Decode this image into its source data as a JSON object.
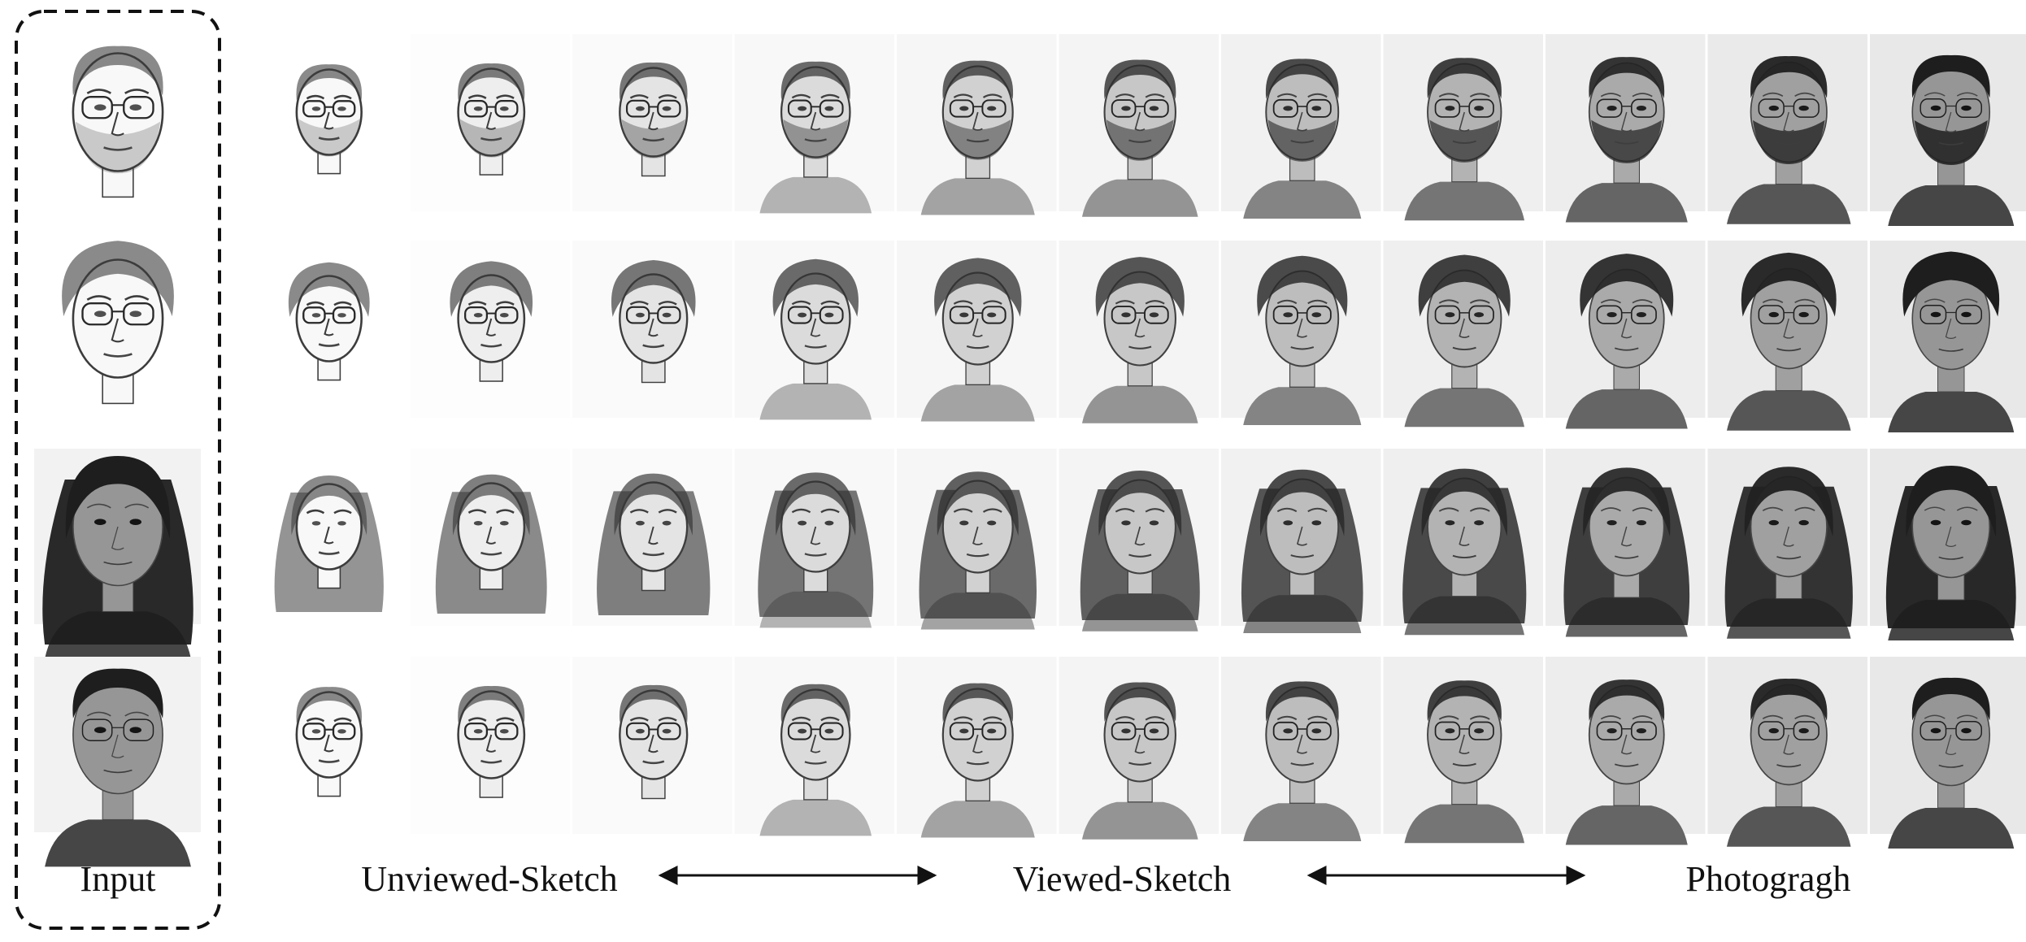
{
  "input_label": "Input",
  "axis": {
    "left_label": "Unviewed-Sketch",
    "middle_label": "Viewed-Sketch",
    "right_label": "Photogragh"
  },
  "rows": [
    {
      "subject": "bearded man with glasses",
      "input_kind": "sketch",
      "hair": "short-curly",
      "glasses": true,
      "beard": true
    },
    {
      "subject": "man with voluminous hair and glasses",
      "input_kind": "sketch",
      "hair": "voluminous",
      "glasses": true,
      "beard": false
    },
    {
      "subject": "woman with long dark hair",
      "input_kind": "photo",
      "hair": "long",
      "glasses": false,
      "beard": false
    },
    {
      "subject": "short-haired man with glasses",
      "input_kind": "photo",
      "hair": "short",
      "glasses": true,
      "beard": false
    }
  ],
  "steps": 11
}
